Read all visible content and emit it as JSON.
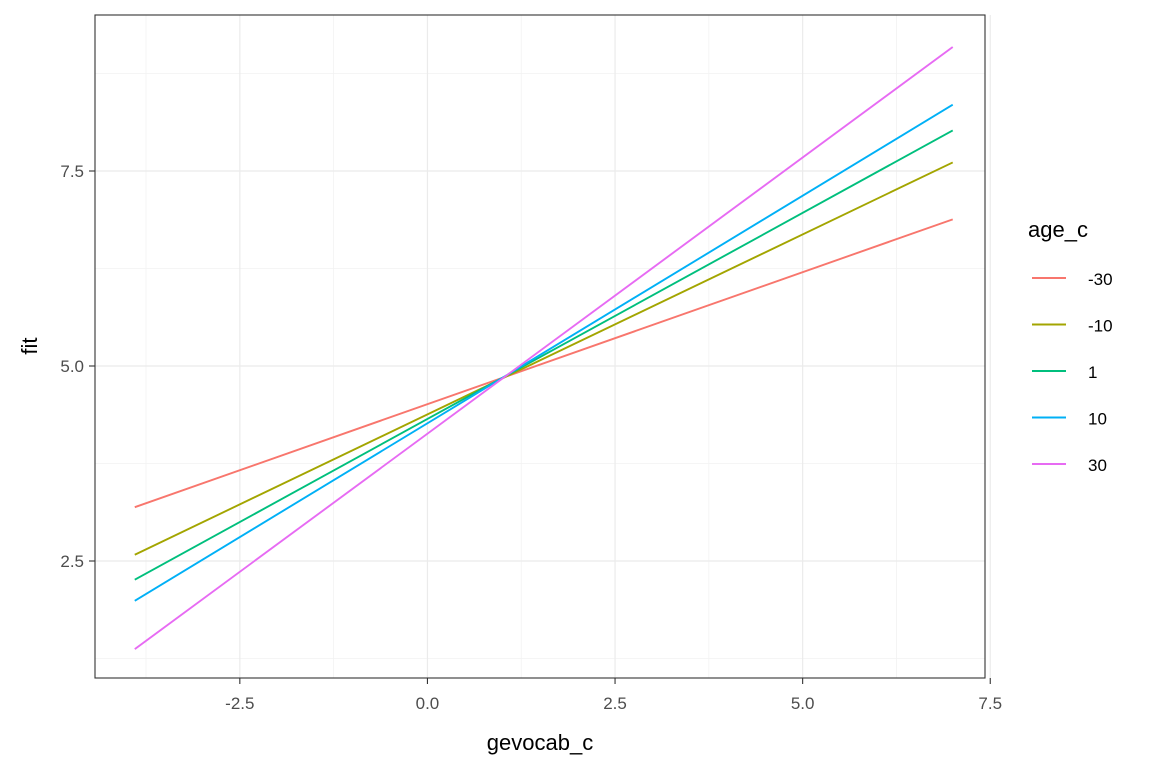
{
  "chart_data": {
    "type": "line",
    "xlabel": "gevocab_c",
    "ylabel": "fit",
    "xlim": [
      -4.43,
      7.43
    ],
    "ylim": [
      1.0,
      9.5
    ],
    "x_major_ticks": [
      -2.5,
      0.0,
      2.5,
      5.0,
      7.5
    ],
    "x_tick_labels": [
      "-2.5",
      "0.0",
      "2.5",
      "5.0",
      "7.5"
    ],
    "y_major_ticks": [
      2.5,
      5.0,
      7.5
    ],
    "y_tick_labels": [
      "2.5",
      "5.0",
      "7.5"
    ],
    "x_minor_ticks": [
      -3.75,
      -1.25,
      1.25,
      3.75,
      6.25
    ],
    "y_minor_ticks": [
      1.25,
      3.75,
      6.25,
      8.75
    ],
    "grid": true,
    "legend": {
      "title": "age_c",
      "placement": "right"
    },
    "series": [
      {
        "name": "-30",
        "color": "#F8766D",
        "x": [
          -3.9,
          7.0
        ],
        "y": [
          3.19,
          6.88
        ]
      },
      {
        "name": "-10",
        "color": "#A3A500",
        "x": [
          -3.9,
          7.0
        ],
        "y": [
          2.58,
          7.61
        ]
      },
      {
        "name": "1",
        "color": "#00BF7D",
        "x": [
          -3.9,
          7.0
        ],
        "y": [
          2.26,
          8.02
        ]
      },
      {
        "name": "10",
        "color": "#00B0F6",
        "x": [
          -3.9,
          7.0
        ],
        "y": [
          1.99,
          8.35
        ]
      },
      {
        "name": "30",
        "color": "#E76BF3",
        "x": [
          -3.9,
          7.0
        ],
        "y": [
          1.37,
          9.09
        ]
      }
    ]
  }
}
